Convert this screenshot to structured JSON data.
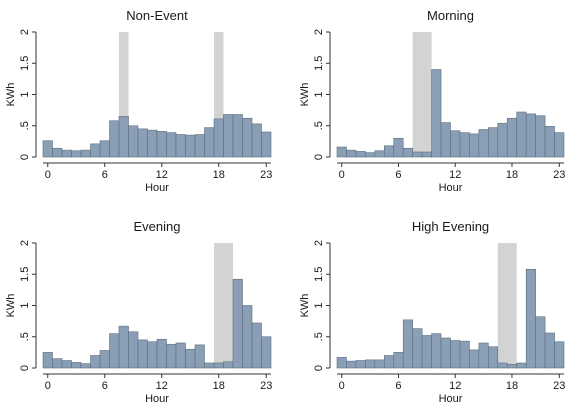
{
  "figure": {
    "background": "#ffffff",
    "bar_fill": "#8a9fb5",
    "bar_stroke": "#5d6f80",
    "event_shade": "#d3d3d3"
  },
  "chart_data": [
    {
      "type": "bar",
      "title": "Non-Event",
      "xlabel": "Hour",
      "ylabel": "KWh",
      "x_ticks": [
        0,
        6,
        12,
        18,
        23
      ],
      "y_ticks": [
        0,
        0.5,
        1,
        1.5,
        2
      ],
      "y_tick_labels": [
        "0",
        ".5",
        "1",
        "1.5",
        "2"
      ],
      "ylim": [
        0,
        2
      ],
      "xlim": [
        -0.5,
        23.5
      ],
      "categories": [
        0,
        1,
        2,
        3,
        4,
        5,
        6,
        7,
        8,
        9,
        10,
        11,
        12,
        13,
        14,
        15,
        16,
        17,
        18,
        19,
        20,
        21,
        22,
        23
      ],
      "values": [
        0.26,
        0.14,
        0.11,
        0.1,
        0.11,
        0.21,
        0.26,
        0.58,
        0.65,
        0.5,
        0.45,
        0.43,
        0.41,
        0.39,
        0.36,
        0.35,
        0.36,
        0.47,
        0.61,
        0.68,
        0.68,
        0.62,
        0.53,
        0.4
      ],
      "shaded_hours": [
        [
          7.5,
          8.5
        ],
        [
          17.5,
          18.5
        ]
      ],
      "grid": false,
      "legend": "none"
    },
    {
      "type": "bar",
      "title": "Morning",
      "xlabel": "Hour",
      "ylabel": "KWh",
      "x_ticks": [
        0,
        6,
        12,
        18,
        23
      ],
      "y_ticks": [
        0,
        0.5,
        1,
        1.5,
        2
      ],
      "y_tick_labels": [
        "0",
        ".5",
        "1",
        "1.5",
        "2"
      ],
      "ylim": [
        0,
        2
      ],
      "xlim": [
        -0.5,
        23.5
      ],
      "categories": [
        0,
        1,
        2,
        3,
        4,
        5,
        6,
        7,
        8,
        9,
        10,
        11,
        12,
        13,
        14,
        15,
        16,
        17,
        18,
        19,
        20,
        21,
        22,
        23
      ],
      "values": [
        0.16,
        0.11,
        0.09,
        0.07,
        0.1,
        0.18,
        0.3,
        0.14,
        0.08,
        0.08,
        1.4,
        0.55,
        0.42,
        0.39,
        0.37,
        0.44,
        0.47,
        0.54,
        0.62,
        0.72,
        0.69,
        0.66,
        0.49,
        0.39
      ],
      "shaded_hours": [
        [
          7.5,
          9.5
        ]
      ],
      "grid": false,
      "legend": "none"
    },
    {
      "type": "bar",
      "title": "Evening",
      "xlabel": "Hour",
      "ylabel": "KWh",
      "x_ticks": [
        0,
        6,
        12,
        18,
        23
      ],
      "y_ticks": [
        0,
        0.5,
        1,
        1.5,
        2
      ],
      "y_tick_labels": [
        "0",
        ".5",
        "1",
        "1.5",
        "2"
      ],
      "ylim": [
        0,
        2
      ],
      "xlim": [
        -0.5,
        23.5
      ],
      "categories": [
        0,
        1,
        2,
        3,
        4,
        5,
        6,
        7,
        8,
        9,
        10,
        11,
        12,
        13,
        14,
        15,
        16,
        17,
        18,
        19,
        20,
        21,
        22,
        23
      ],
      "values": [
        0.25,
        0.15,
        0.12,
        0.09,
        0.07,
        0.2,
        0.28,
        0.55,
        0.67,
        0.58,
        0.45,
        0.42,
        0.46,
        0.38,
        0.4,
        0.3,
        0.37,
        0.08,
        0.08,
        0.1,
        1.42,
        1.0,
        0.72,
        0.5
      ],
      "shaded_hours": [
        [
          17.5,
          19.5
        ]
      ],
      "grid": false,
      "legend": "none"
    },
    {
      "type": "bar",
      "title": "High Evening",
      "xlabel": "Hour",
      "ylabel": "KWh",
      "x_ticks": [
        0,
        6,
        12,
        18,
        23
      ],
      "y_ticks": [
        0,
        0.5,
        1,
        1.5,
        2
      ],
      "y_tick_labels": [
        "0",
        ".5",
        "1",
        "1.5",
        "2"
      ],
      "ylim": [
        0,
        2
      ],
      "xlim": [
        -0.5,
        23.5
      ],
      "categories": [
        0,
        1,
        2,
        3,
        4,
        5,
        6,
        7,
        8,
        9,
        10,
        11,
        12,
        13,
        14,
        15,
        16,
        17,
        18,
        19,
        20,
        21,
        22,
        23
      ],
      "values": [
        0.17,
        0.11,
        0.12,
        0.13,
        0.13,
        0.2,
        0.25,
        0.77,
        0.63,
        0.52,
        0.55,
        0.48,
        0.44,
        0.43,
        0.29,
        0.4,
        0.34,
        0.08,
        0.06,
        0.08,
        1.58,
        0.82,
        0.56,
        0.42
      ],
      "shaded_hours": [
        [
          16.5,
          18.5
        ]
      ],
      "grid": false,
      "legend": "none"
    }
  ]
}
